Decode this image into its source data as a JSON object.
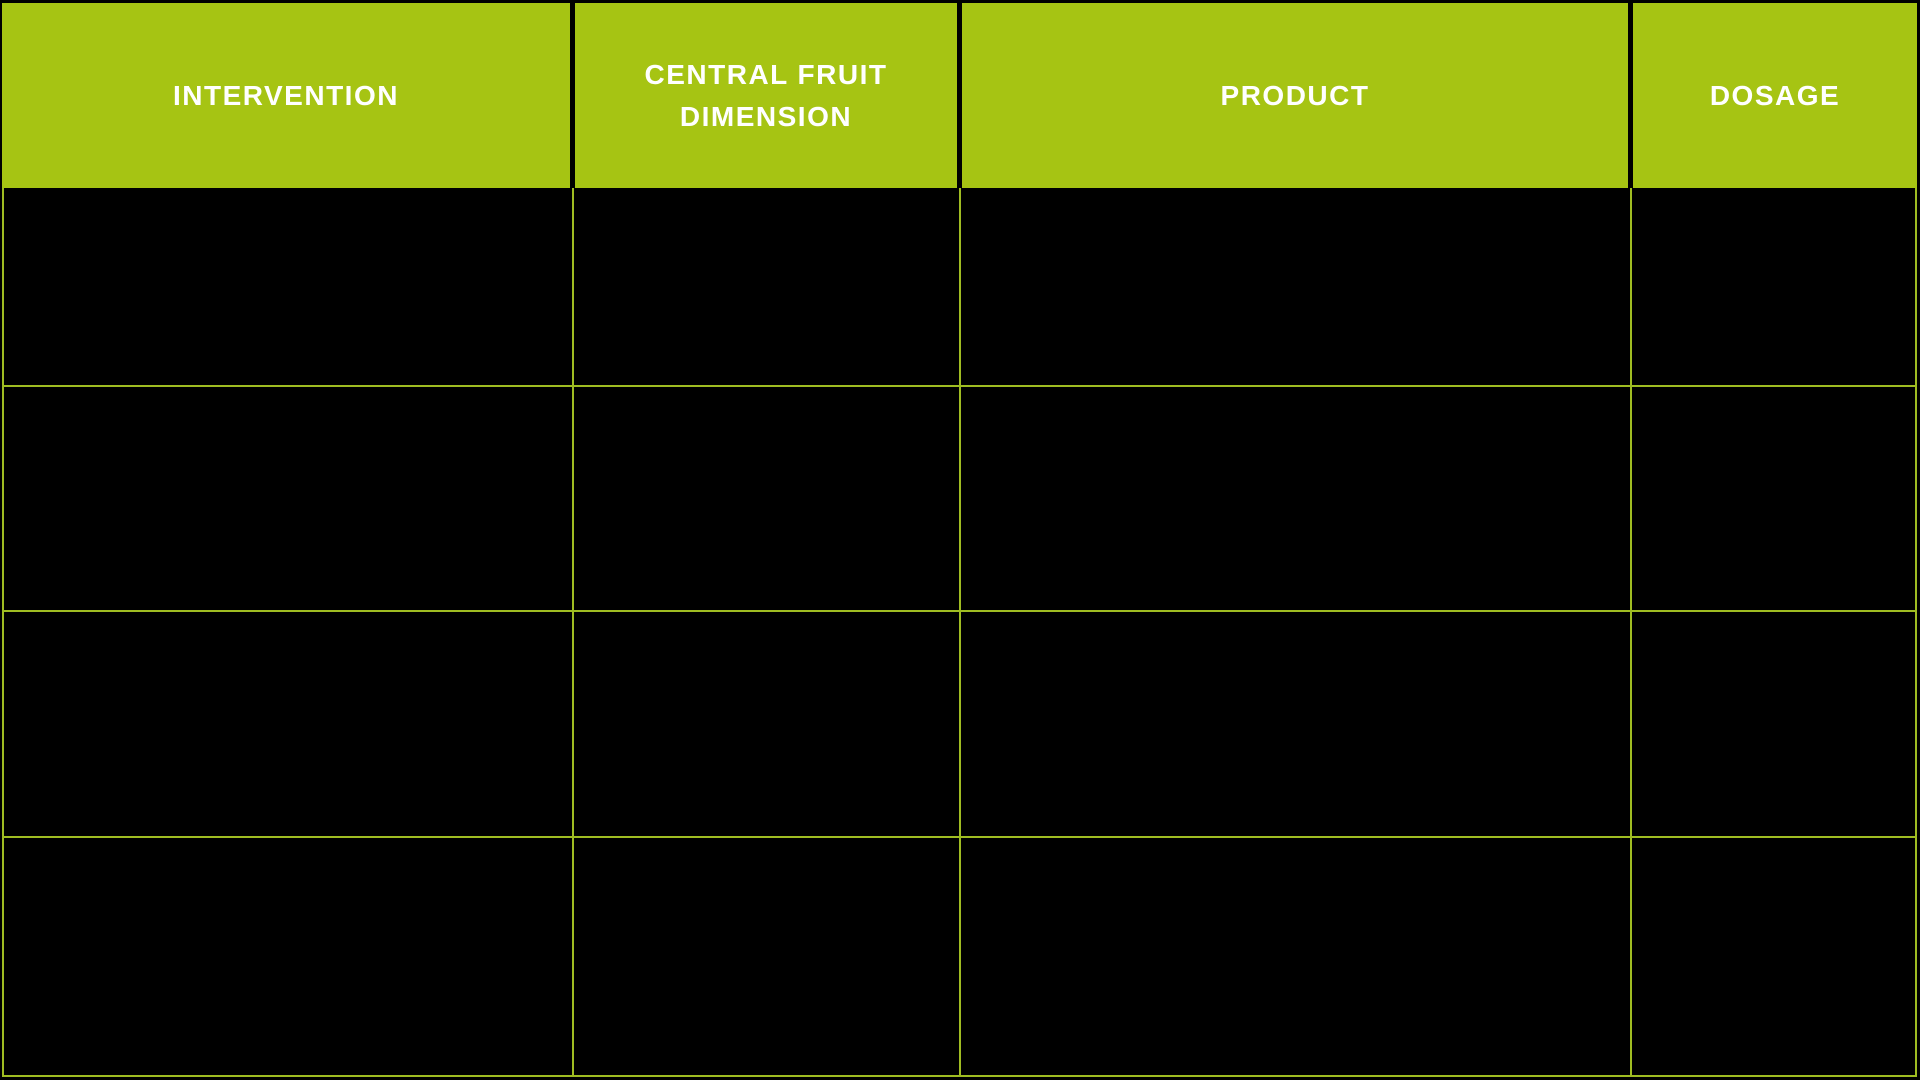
{
  "table": {
    "columns": [
      {
        "id": "intervention",
        "label": "INTERVENTION"
      },
      {
        "id": "central-fruit-dimension",
        "label": "CENTRAL FRUIT DIMENSION"
      },
      {
        "id": "product",
        "label": "PRODUCT"
      },
      {
        "id": "dosage",
        "label": "DOSAGE"
      }
    ],
    "rows": [
      {
        "cells": [
          "",
          "",
          "",
          ""
        ]
      },
      {
        "cells": [
          "",
          "",
          "",
          ""
        ]
      },
      {
        "cells": [
          "",
          "",
          "",
          ""
        ]
      },
      {
        "cells": [
          "",
          "",
          "",
          ""
        ]
      }
    ],
    "colors": {
      "page_bg": "#000000",
      "header_bg": "#a6c413",
      "header_text": "#ffffff",
      "grid_line": "#9fbc22",
      "body_bg": "#000000"
    }
  }
}
